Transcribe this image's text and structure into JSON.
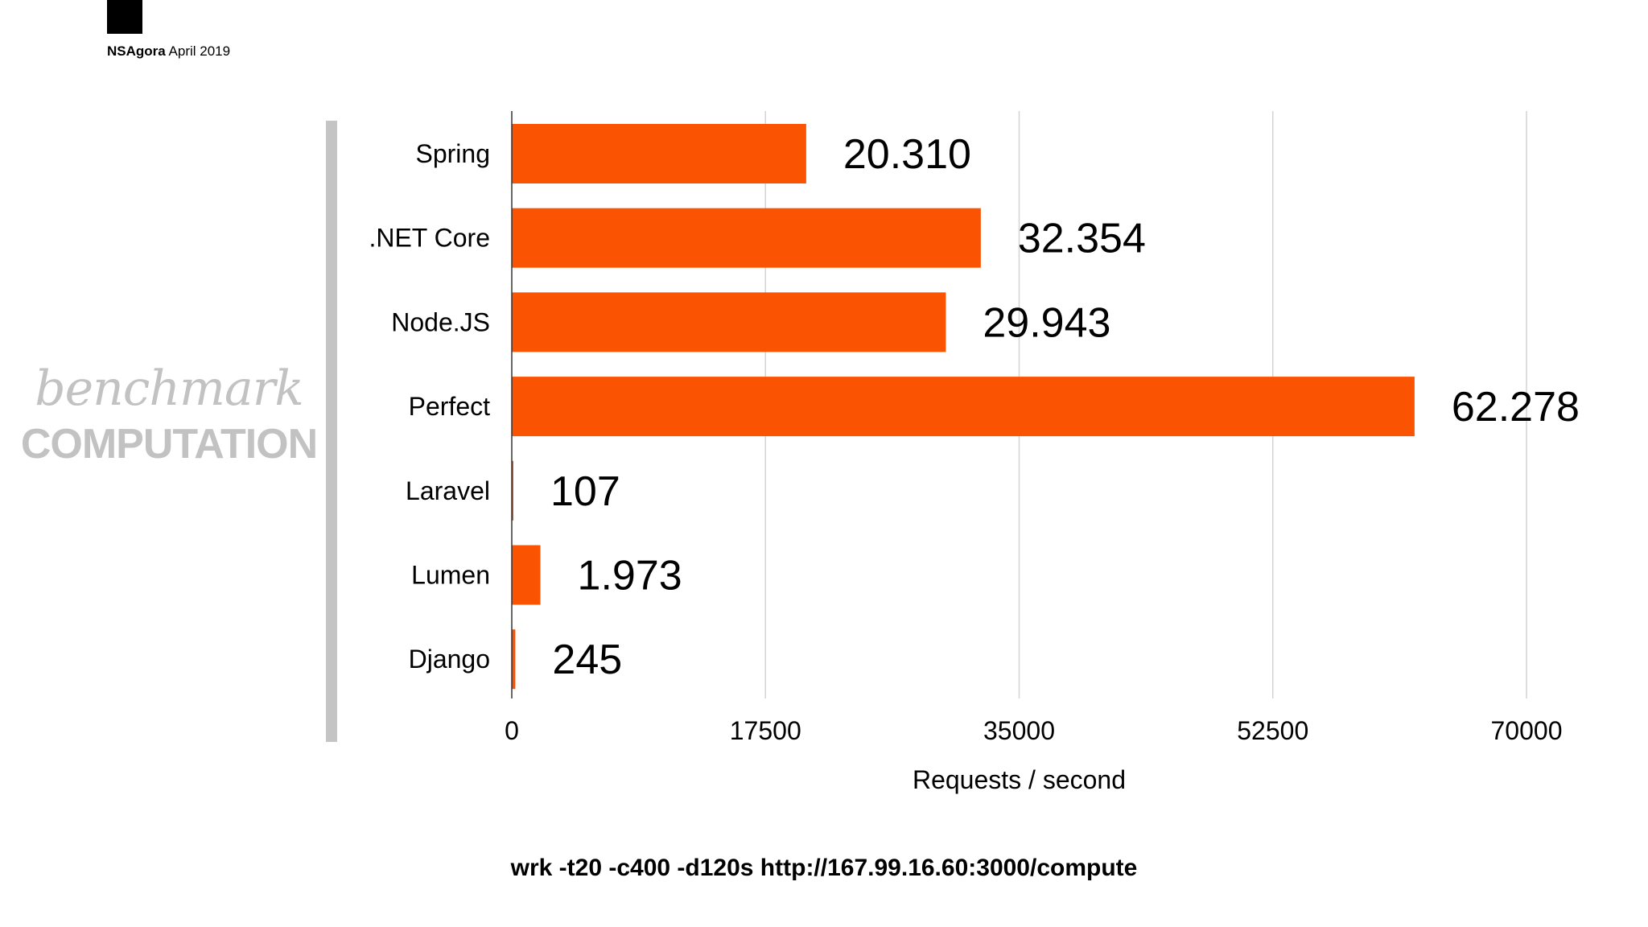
{
  "header": {
    "brand_bold": "NSAgora",
    "brand_date": "April 2019"
  },
  "side": {
    "script_title": "benchmark",
    "caps_title": "COMPUTATION"
  },
  "chart_data": {
    "type": "bar",
    "orientation": "horizontal",
    "categories": [
      "Spring",
      ".NET Core",
      "Node.JS",
      "Perfect",
      "Laravel",
      "Lumen",
      "Django"
    ],
    "values": [
      20310,
      32354,
      29943,
      62278,
      107,
      1973,
      245
    ],
    "value_labels": [
      "20.310",
      "32.354",
      "29.943",
      "62.278",
      "107",
      "1.973",
      "245"
    ],
    "xlabel": "Requests / second",
    "xlim": [
      0,
      70000
    ],
    "xticks": [
      0,
      17500,
      35000,
      52500,
      70000
    ],
    "grid": "vertical",
    "bar_color": "#fa5302"
  },
  "footer": {
    "command": "wrk -t20 -c400 -d120s http://167.99.16.60:3000/compute"
  }
}
